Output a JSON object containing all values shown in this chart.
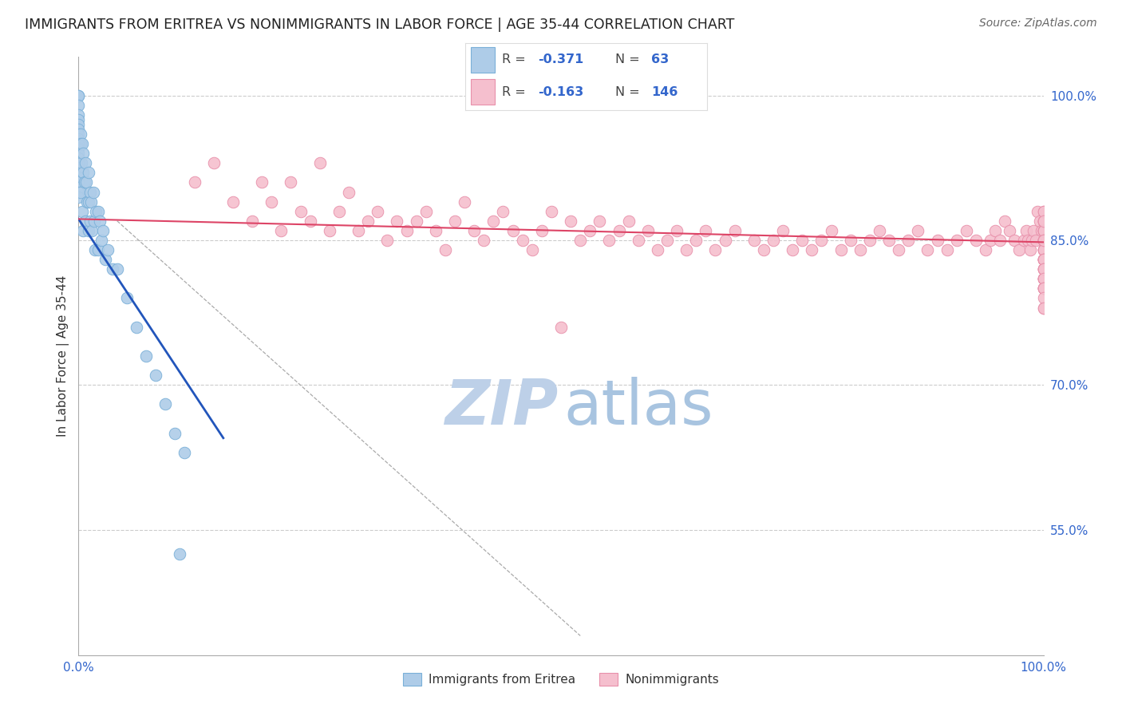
{
  "title": "IMMIGRANTS FROM ERITREA VS NONIMMIGRANTS IN LABOR FORCE | AGE 35-44 CORRELATION CHART",
  "source": "Source: ZipAtlas.com",
  "series1_label": "Immigrants from Eritrea",
  "series1_R": -0.371,
  "series1_N": 63,
  "series1_color": "#aecce8",
  "series1_edgecolor": "#7ab0d8",
  "series2_label": "Nonimmigrants",
  "series2_R": -0.163,
  "series2_N": 146,
  "series2_color": "#f5bfce",
  "series2_edgecolor": "#e890aa",
  "trend1_color": "#2255bb",
  "trend2_color": "#dd4466",
  "title_color": "#222222",
  "source_color": "#666666",
  "axis_color": "#3366cc",
  "grid_color": "#cccccc",
  "ylabel": "In Labor Force | Age 35-44",
  "right_ytick_labels": [
    "100.0%",
    "85.0%",
    "70.0%",
    "55.0%"
  ],
  "right_ytick_values": [
    1.0,
    0.85,
    0.7,
    0.55
  ],
  "xmin": 0.0,
  "xmax": 1.0,
  "ymin": 0.42,
  "ymax": 1.04,
  "blue_x": [
    0.0,
    0.0,
    0.0,
    0.0,
    0.0,
    0.0,
    0.0,
    0.0,
    0.0,
    0.0,
    0.0,
    0.0,
    0.0,
    0.0,
    0.0,
    0.0,
    0.0,
    0.0,
    0.0,
    0.0,
    0.0,
    0.002,
    0.002,
    0.002,
    0.003,
    0.004,
    0.004,
    0.005,
    0.005,
    0.005,
    0.006,
    0.007,
    0.007,
    0.008,
    0.009,
    0.01,
    0.01,
    0.01,
    0.012,
    0.012,
    0.013,
    0.014,
    0.015,
    0.016,
    0.017,
    0.018,
    0.02,
    0.02,
    0.022,
    0.024,
    0.025,
    0.028,
    0.03,
    0.035,
    0.04,
    0.05,
    0.06,
    0.07,
    0.08,
    0.09,
    0.1,
    0.11,
    0.105
  ],
  "blue_y": [
    1.0,
    1.0,
    0.99,
    0.98,
    0.975,
    0.97,
    0.965,
    0.96,
    0.955,
    0.95,
    0.945,
    0.94,
    0.935,
    0.93,
    0.925,
    0.92,
    0.915,
    0.91,
    0.905,
    0.9,
    0.895,
    0.96,
    0.95,
    0.9,
    0.93,
    0.95,
    0.88,
    0.94,
    0.92,
    0.86,
    0.91,
    0.93,
    0.87,
    0.91,
    0.89,
    0.92,
    0.89,
    0.86,
    0.9,
    0.87,
    0.89,
    0.86,
    0.9,
    0.87,
    0.84,
    0.88,
    0.88,
    0.84,
    0.87,
    0.85,
    0.86,
    0.83,
    0.84,
    0.82,
    0.82,
    0.79,
    0.76,
    0.73,
    0.71,
    0.68,
    0.65,
    0.63,
    0.525
  ],
  "blue_trend_x": [
    0.0,
    0.15
  ],
  "blue_trend_y": [
    0.872,
    0.645
  ],
  "pink_trend_x": [
    0.0,
    1.0
  ],
  "pink_trend_y": [
    0.872,
    0.848
  ],
  "ref_line_x": [
    0.04,
    0.52
  ],
  "ref_line_y": [
    0.87,
    0.44
  ],
  "pink_x": [
    0.12,
    0.14,
    0.16,
    0.18,
    0.19,
    0.2,
    0.21,
    0.22,
    0.23,
    0.24,
    0.25,
    0.26,
    0.27,
    0.28,
    0.29,
    0.3,
    0.31,
    0.32,
    0.33,
    0.34,
    0.35,
    0.36,
    0.37,
    0.38,
    0.39,
    0.4,
    0.41,
    0.42,
    0.43,
    0.44,
    0.45,
    0.46,
    0.47,
    0.48,
    0.49,
    0.5,
    0.51,
    0.52,
    0.53,
    0.54,
    0.55,
    0.56,
    0.57,
    0.58,
    0.59,
    0.6,
    0.61,
    0.62,
    0.63,
    0.64,
    0.65,
    0.66,
    0.67,
    0.68,
    0.7,
    0.71,
    0.72,
    0.73,
    0.74,
    0.75,
    0.76,
    0.77,
    0.78,
    0.79,
    0.8,
    0.81,
    0.82,
    0.83,
    0.84,
    0.85,
    0.86,
    0.87,
    0.88,
    0.89,
    0.9,
    0.91,
    0.92,
    0.93,
    0.94,
    0.945,
    0.95,
    0.955,
    0.96,
    0.965,
    0.97,
    0.975,
    0.98,
    0.982,
    0.984,
    0.986,
    0.988,
    0.99,
    0.992,
    0.994,
    0.996,
    0.998,
    1.0,
    1.0,
    1.0,
    1.0,
    1.0,
    1.0,
    1.0,
    1.0,
    1.0,
    1.0,
    1.0,
    1.0,
    1.0,
    1.0,
    1.0,
    1.0,
    1.0,
    1.0,
    1.0,
    1.0,
    1.0,
    1.0,
    1.0,
    1.0,
    1.0,
    1.0,
    1.0,
    1.0,
    1.0,
    1.0,
    1.0,
    1.0,
    1.0,
    1.0,
    1.0,
    1.0,
    1.0,
    1.0,
    1.0,
    1.0,
    1.0,
    1.0,
    1.0,
    1.0,
    1.0,
    1.0,
    1.0,
    1.0,
    1.0,
    1.0
  ],
  "pink_y": [
    0.91,
    0.93,
    0.89,
    0.87,
    0.91,
    0.89,
    0.86,
    0.91,
    0.88,
    0.87,
    0.93,
    0.86,
    0.88,
    0.9,
    0.86,
    0.87,
    0.88,
    0.85,
    0.87,
    0.86,
    0.87,
    0.88,
    0.86,
    0.84,
    0.87,
    0.89,
    0.86,
    0.85,
    0.87,
    0.88,
    0.86,
    0.85,
    0.84,
    0.86,
    0.88,
    0.76,
    0.87,
    0.85,
    0.86,
    0.87,
    0.85,
    0.86,
    0.87,
    0.85,
    0.86,
    0.84,
    0.85,
    0.86,
    0.84,
    0.85,
    0.86,
    0.84,
    0.85,
    0.86,
    0.85,
    0.84,
    0.85,
    0.86,
    0.84,
    0.85,
    0.84,
    0.85,
    0.86,
    0.84,
    0.85,
    0.84,
    0.85,
    0.86,
    0.85,
    0.84,
    0.85,
    0.86,
    0.84,
    0.85,
    0.84,
    0.85,
    0.86,
    0.85,
    0.84,
    0.85,
    0.86,
    0.85,
    0.87,
    0.86,
    0.85,
    0.84,
    0.85,
    0.86,
    0.85,
    0.84,
    0.85,
    0.86,
    0.85,
    0.88,
    0.87,
    0.86,
    0.88,
    0.87,
    0.86,
    0.85,
    0.84,
    0.83,
    0.87,
    0.86,
    0.85,
    0.84,
    0.83,
    0.87,
    0.86,
    0.85,
    0.84,
    0.83,
    0.87,
    0.88,
    0.86,
    0.85,
    0.84,
    0.86,
    0.87,
    0.83,
    0.85,
    0.84,
    0.83,
    0.85,
    0.82,
    0.81,
    0.8,
    0.82,
    0.81,
    0.8,
    0.83,
    0.82,
    0.81,
    0.8,
    0.81,
    0.83,
    0.82,
    0.81,
    0.8,
    0.82,
    0.81,
    0.8,
    0.78,
    0.8,
    0.79,
    0.78
  ]
}
